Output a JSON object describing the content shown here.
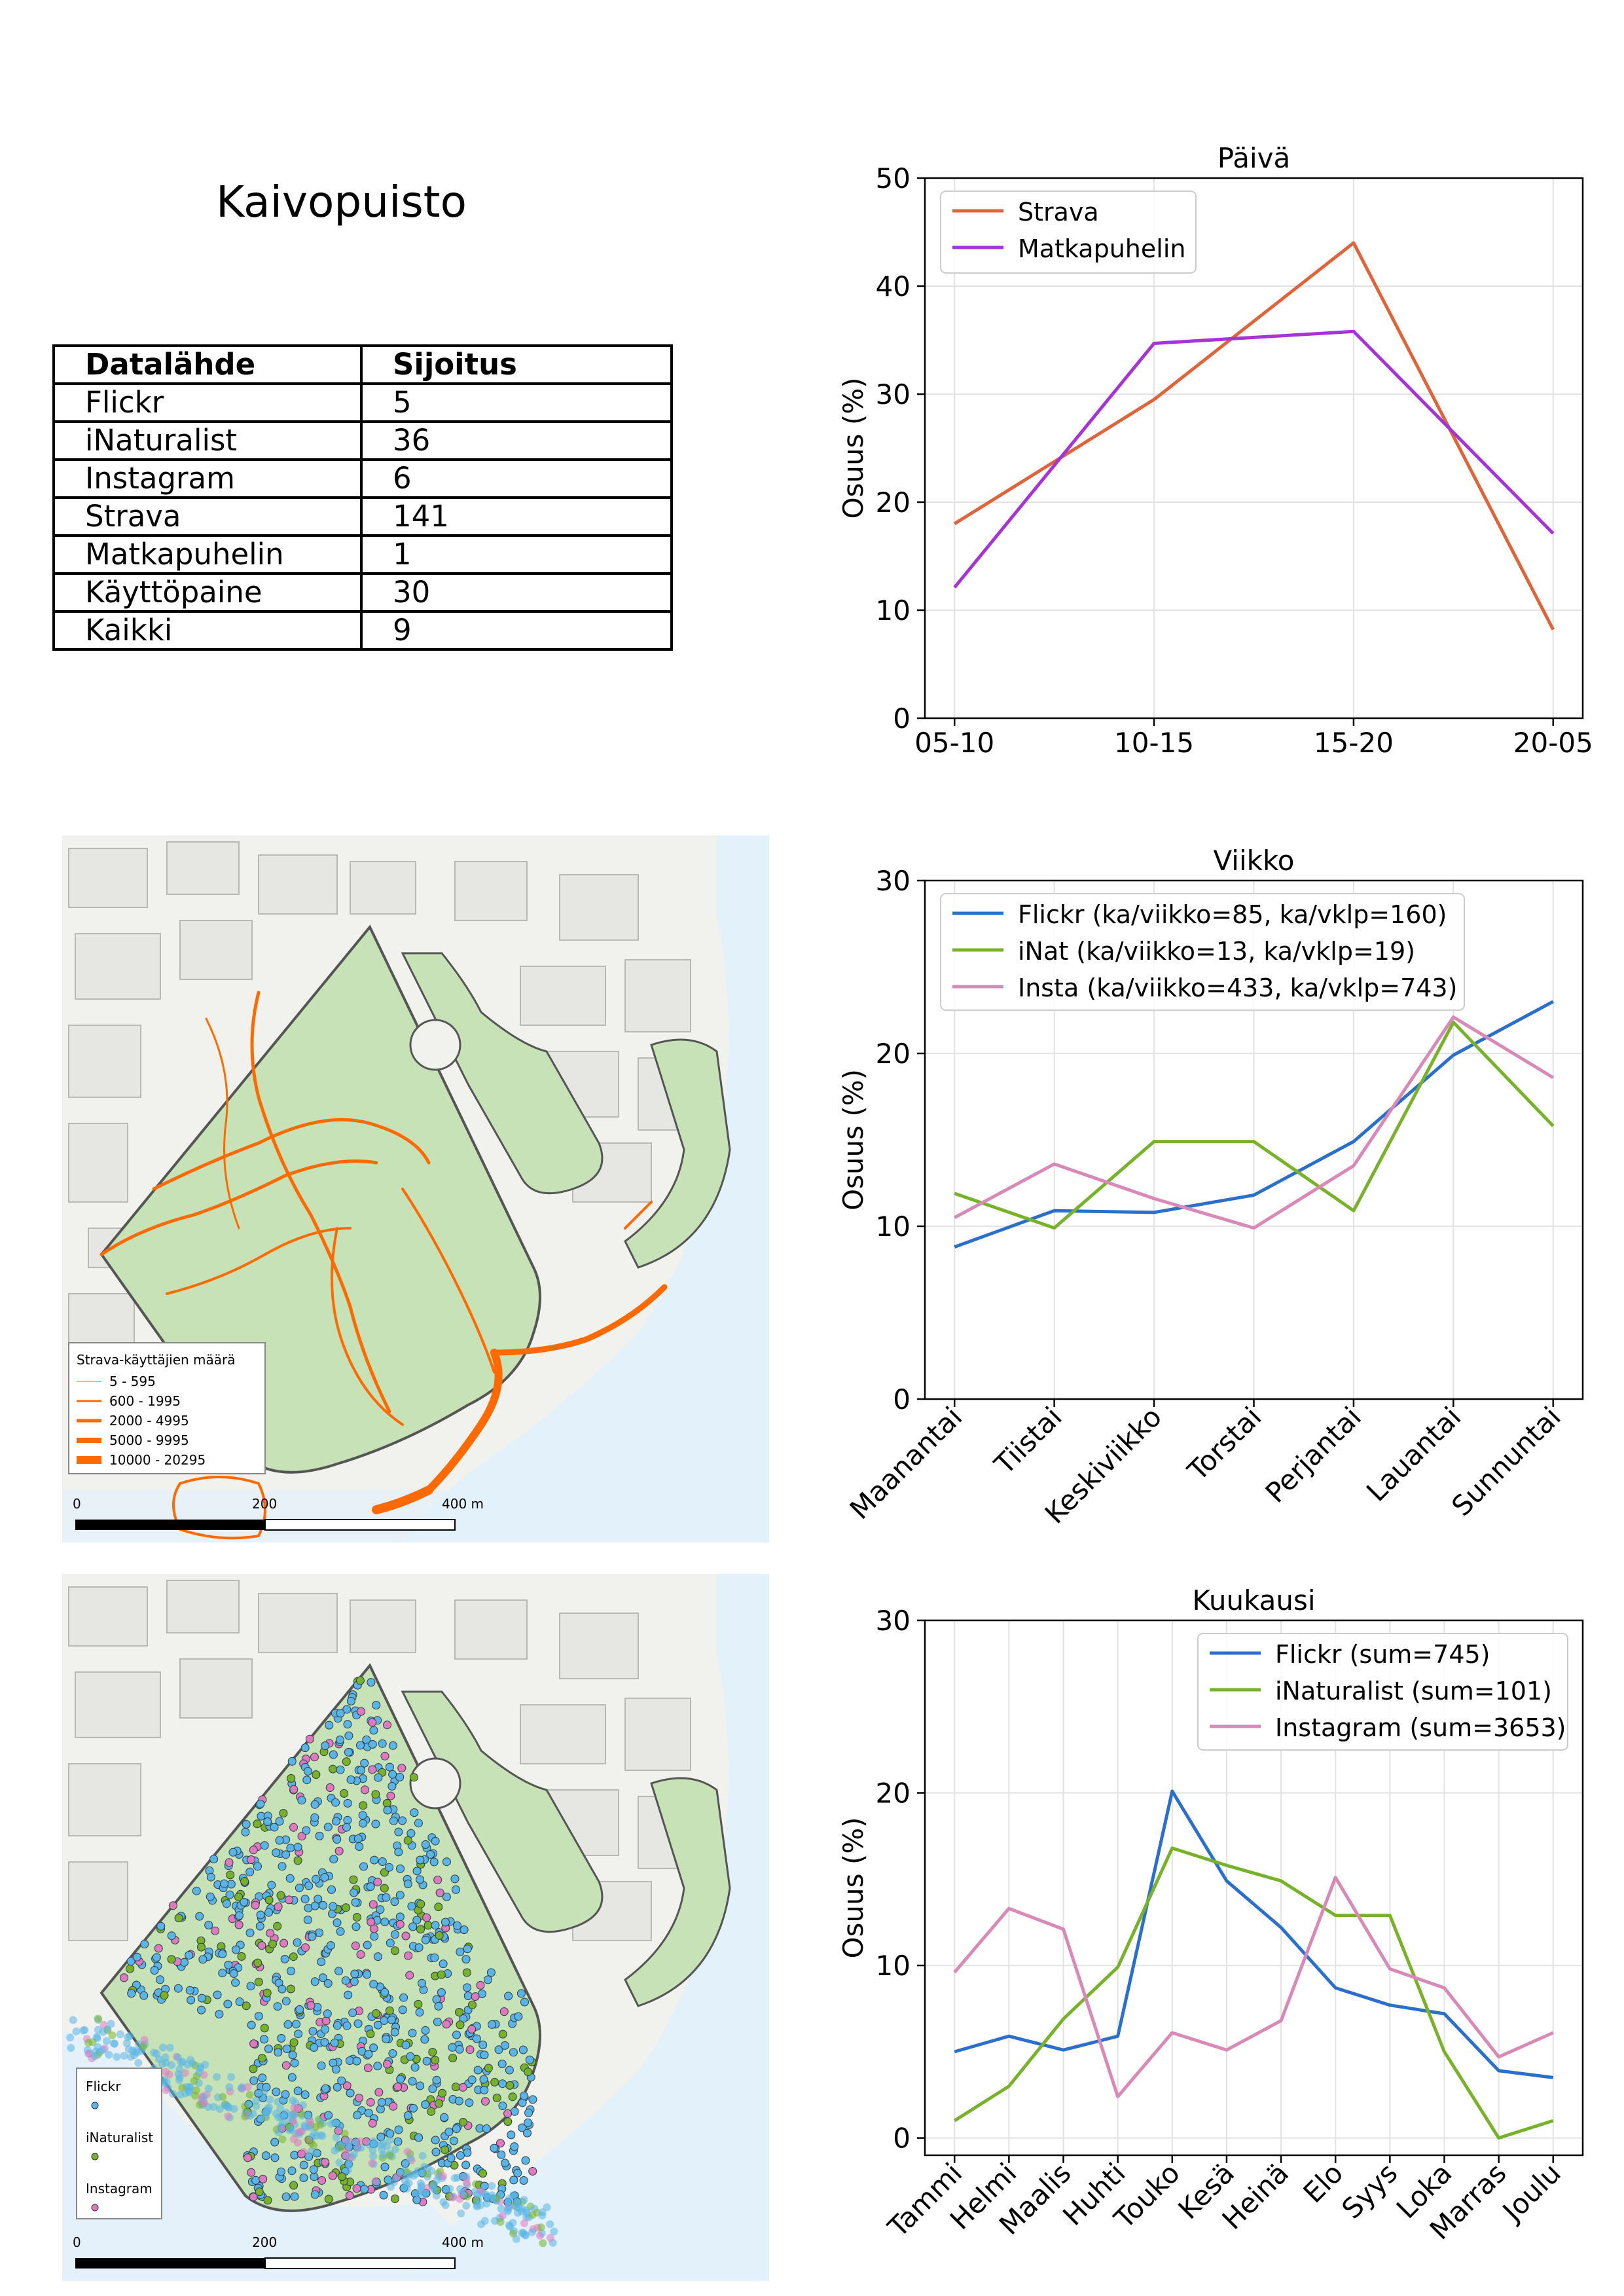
{
  "page_title": "Kaivopuisto",
  "ranking_table": {
    "headers": [
      "Datalähde",
      "Sijoitus"
    ],
    "rows": [
      [
        "Flickr",
        "5"
      ],
      [
        "iNaturalist",
        "36"
      ],
      [
        "Instagram",
        "6"
      ],
      [
        "Strava",
        "141"
      ],
      [
        "Matkapuhelin",
        "1"
      ],
      [
        "Käyttöpaine",
        "30"
      ],
      [
        "Kaikki",
        "9"
      ]
    ]
  },
  "strava_map": {
    "legend_title": "Strava-käyttäjien määrä",
    "legend_items": [
      "5 - 595",
      "600 - 1995",
      "2000 - 4995",
      "5000 - 9995",
      "10000 - 20295"
    ],
    "scale_labels": [
      "0",
      "200",
      "400 m"
    ]
  },
  "points_map": {
    "legend_items": [
      "Flickr",
      "iNaturalist",
      "Instagram"
    ],
    "scale_labels": [
      "0",
      "200",
      "400 m"
    ]
  },
  "colors": {
    "strava": "#e0643a",
    "matkapuhelin": "#a533d6",
    "flickr": "#2a6fcc",
    "inat": "#78b22a",
    "insta": "#d889b8",
    "park_green": "#c8e2b8",
    "water": "#e3f1fb",
    "route_orange": "#ff6a00"
  },
  "chart_data": [
    {
      "type": "line",
      "title": "Päivä",
      "categories": [
        "05-10",
        "10-15",
        "15-20",
        "20-05"
      ],
      "ylabel": "Osuus (%)",
      "xlabel": "",
      "ylim": [
        0,
        50
      ],
      "yticks": [
        0,
        10,
        20,
        30,
        40,
        50
      ],
      "grid": true,
      "legend": "top-left",
      "series": [
        {
          "name": "Strava",
          "values": [
            18.0,
            29.5,
            44.0,
            8.2
          ],
          "color": "#e0643a"
        },
        {
          "name": "Matkapuhelin",
          "values": [
            12.1,
            34.7,
            35.8,
            17.1
          ],
          "color": "#a533d6"
        }
      ]
    },
    {
      "type": "line",
      "title": "Viikko",
      "categories": [
        "Maanantai",
        "Tiistai",
        "Keskiviikko",
        "Torstai",
        "Perjantai",
        "Lauantai",
        "Sunnuntai"
      ],
      "ylabel": "Osuus (%)",
      "xlabel": "",
      "ylim": [
        0,
        30
      ],
      "yticks": [
        0,
        10,
        20,
        30
      ],
      "grid": true,
      "legend": "top-left",
      "series": [
        {
          "name": "Flickr (ka/viikko=85, ka/vklp=160)",
          "values": [
            8.8,
            10.9,
            10.8,
            11.8,
            14.9,
            19.9,
            23.0
          ],
          "color": "#2a6fcc"
        },
        {
          "name": "iNat (ka/viikko=13, ka/vklp=19)",
          "values": [
            11.9,
            9.9,
            14.9,
            14.9,
            10.9,
            21.8,
            15.8
          ],
          "color": "#78b22a"
        },
        {
          "name": "Insta (ka/viikko=433, ka/vklp=743)",
          "values": [
            10.5,
            13.6,
            11.6,
            9.9,
            13.5,
            22.1,
            18.6
          ],
          "color": "#d889b8"
        }
      ]
    },
    {
      "type": "line",
      "title": "Kuukausi",
      "categories": [
        "Tammi",
        "Helmi",
        "Maalis",
        "Huhti",
        "Touko",
        "Kesä",
        "Heinä",
        "Elo",
        "Syys",
        "Loka",
        "Marras",
        "Joulu"
      ],
      "ylabel": "Osuus (%)",
      "xlabel": "",
      "ylim": [
        -1,
        30
      ],
      "yticks": [
        0,
        10,
        20,
        30
      ],
      "grid": true,
      "legend": "top-right",
      "series": [
        {
          "name": "Flickr (sum=745)",
          "values": [
            5.0,
            5.9,
            5.1,
            5.9,
            20.1,
            14.9,
            12.2,
            8.7,
            7.7,
            7.2,
            3.9,
            3.5
          ],
          "color": "#2a6fcc"
        },
        {
          "name": "iNaturalist (sum=101)",
          "values": [
            1.0,
            3.0,
            6.9,
            9.9,
            16.8,
            15.8,
            14.9,
            12.9,
            12.9,
            5.0,
            0.0,
            1.0
          ],
          "color": "#78b22a"
        },
        {
          "name": "Instagram (sum=3653)",
          "values": [
            9.6,
            13.3,
            12.1,
            2.4,
            6.1,
            5.1,
            6.8,
            15.1,
            9.8,
            8.7,
            4.7,
            6.1
          ],
          "color": "#d889b8"
        }
      ]
    }
  ]
}
